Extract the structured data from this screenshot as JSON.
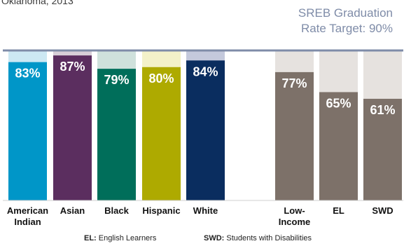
{
  "header": {
    "subtitle_partial": "Oklahoma, 2013",
    "target_line1": "SREB Graduation",
    "target_line2": "Rate Target: 90%"
  },
  "chart_data": {
    "type": "bar",
    "categories": [
      "American Indian",
      "Asian",
      "Black",
      "Hispanic",
      "White",
      "Low-Income",
      "EL",
      "SWD"
    ],
    "values": [
      83,
      87,
      79,
      80,
      84,
      77,
      65,
      61
    ],
    "value_labels": [
      "83%",
      "87%",
      "79%",
      "80%",
      "84%",
      "77%",
      "65%",
      "61%"
    ],
    "category_lines": [
      [
        "American",
        "Indian"
      ],
      [
        "Asian"
      ],
      [
        "Black"
      ],
      [
        "Hispanic"
      ],
      [
        "White"
      ],
      [
        "Low-",
        "Income"
      ],
      [
        "EL"
      ],
      [
        "SWD"
      ]
    ],
    "target": 90,
    "ylim": [
      0,
      90
    ],
    "colors": [
      "#0096c8",
      "#5b2e5f",
      "#006e5a",
      "#aeaa00",
      "#0a2d5f",
      "#7d7169",
      "#7d7169",
      "#7d7169"
    ],
    "target_colors": [
      "#cce8f3",
      "#d8cfd8",
      "#cfe1dc",
      "#f3f1c9",
      "#c4c9dc",
      "#e6e2df",
      "#e6e2df",
      "#e6e2df"
    ],
    "grid": false
  },
  "footnotes": {
    "el_key": "EL:",
    "el_text": " English Learners",
    "swd_key": "SWD:",
    "swd_text": " Students with Disabilities"
  }
}
